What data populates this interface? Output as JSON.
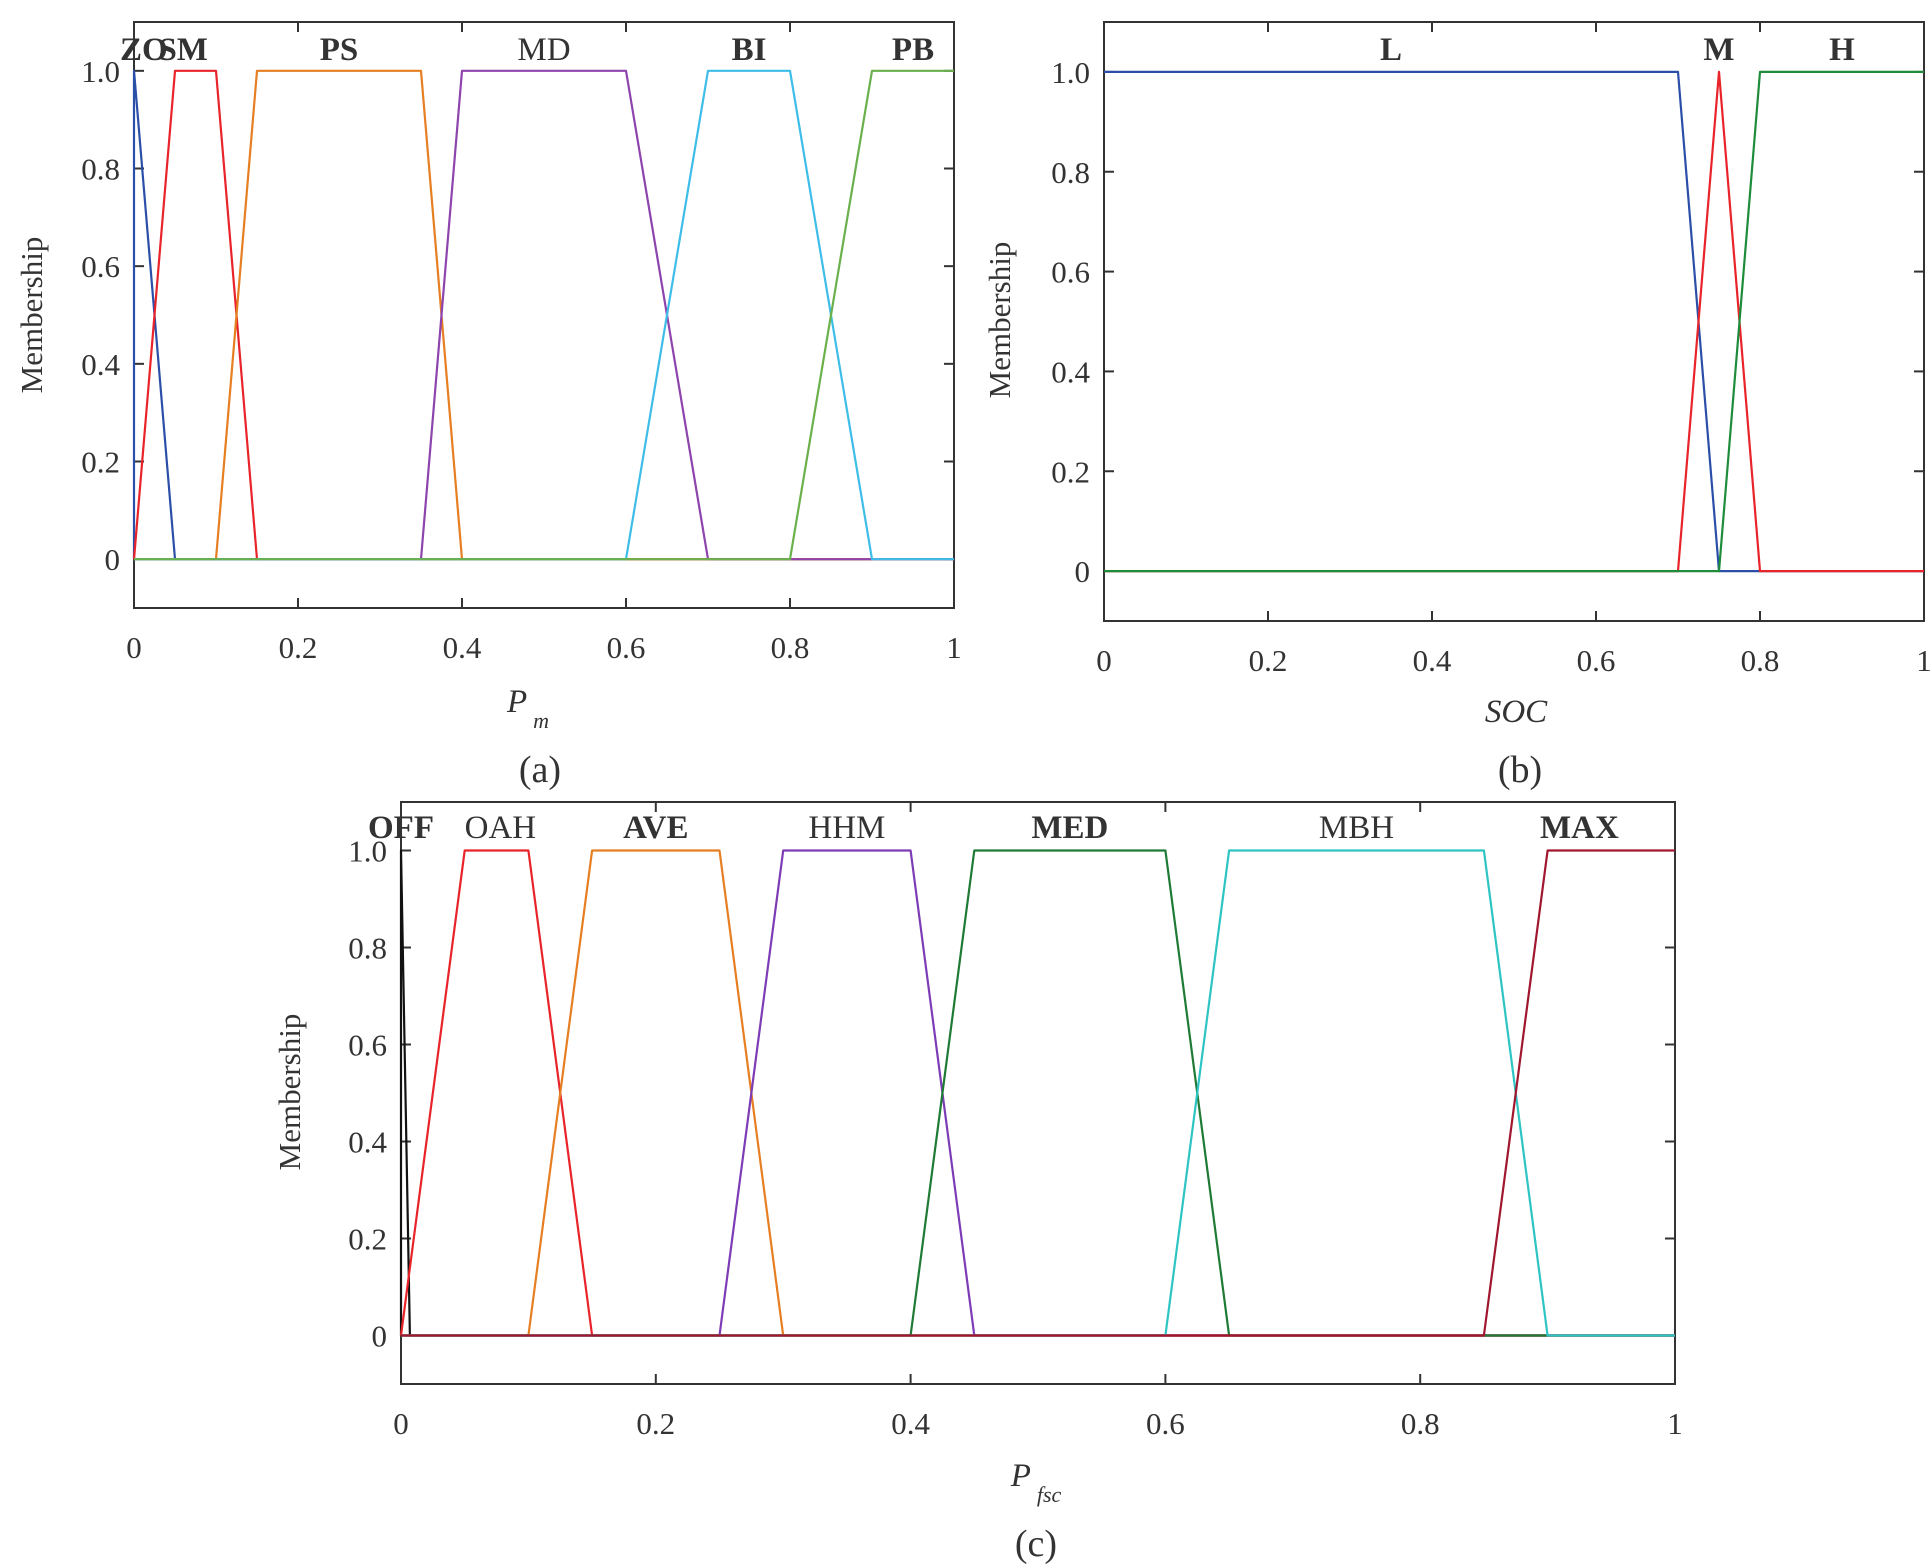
{
  "chart_data": [
    {
      "type": "line",
      "caption": "(a)",
      "xlabel": "P",
      "xlabel_sub": "m",
      "ylabel": "Membership",
      "xlim": [
        0,
        1
      ],
      "ylim": [
        -0.1,
        1.1
      ],
      "xticks": [
        "0",
        "0.2",
        "0.4",
        "0.6",
        "0.8",
        "1"
      ],
      "yticks": [
        "0",
        "0.2",
        "0.4",
        "0.6",
        "0.8",
        "1.0"
      ],
      "series": [
        {
          "name": "ZO",
          "bold": true,
          "color": "#2b4fa8",
          "x": [
            0,
            0,
            0.05,
            1
          ],
          "y": [
            0,
            1,
            0,
            0
          ]
        },
        {
          "name": "SM",
          "bold": true,
          "color": "#e8242a",
          "x": [
            0,
            0.05,
            0.1,
            0.15,
            1
          ],
          "y": [
            0,
            1,
            1,
            0,
            0
          ]
        },
        {
          "name": "PS",
          "bold": true,
          "color": "#e67e22",
          "x": [
            0,
            0.1,
            0.15,
            0.35,
            0.4,
            1
          ],
          "y": [
            0,
            0,
            1,
            1,
            0,
            0
          ]
        },
        {
          "name": "MD",
          "bold": false,
          "color": "#8e44ad",
          "x": [
            0,
            0.35,
            0.4,
            0.6,
            0.7,
            1
          ],
          "y": [
            0,
            0,
            1,
            1,
            0,
            0
          ]
        },
        {
          "name": "BI",
          "bold": true,
          "color": "#3ebde8",
          "x": [
            0,
            0.6,
            0.7,
            0.8,
            0.9,
            1
          ],
          "y": [
            0,
            0,
            1,
            1,
            0,
            0
          ]
        },
        {
          "name": "PB",
          "bold": true,
          "color": "#6ab04c",
          "x": [
            0,
            0.8,
            0.9,
            1
          ],
          "y": [
            0,
            0,
            1,
            1
          ]
        }
      ]
    },
    {
      "type": "line",
      "caption": "(b)",
      "xlabel": "SOC",
      "xlabel_sub": "",
      "ylabel": "Membership",
      "xlim": [
        0,
        1
      ],
      "ylim": [
        -0.1,
        1.1
      ],
      "xticks": [
        "0",
        "0.2",
        "0.4",
        "0.6",
        "0.8",
        "1"
      ],
      "yticks": [
        "0",
        "0.2",
        "0.4",
        "0.6",
        "0.8",
        "1.0"
      ],
      "series": [
        {
          "name": "L",
          "bold": true,
          "color": "#2b4fa8",
          "x": [
            0,
            0.7,
            0.75,
            1
          ],
          "y": [
            1,
            1,
            0,
            0
          ]
        },
        {
          "name": "M",
          "bold": true,
          "color": "#e8242a",
          "x": [
            0,
            0.7,
            0.75,
            0.8,
            1
          ],
          "y": [
            0,
            0,
            1,
            0,
            0
          ]
        },
        {
          "name": "H",
          "bold": true,
          "color": "#1e8c3a",
          "x": [
            0,
            0.75,
            0.8,
            1
          ],
          "y": [
            0,
            0,
            1,
            1
          ]
        }
      ]
    },
    {
      "type": "line",
      "caption": "(c)",
      "xlabel": "P",
      "xlabel_sub": "fsc",
      "ylabel": "Membership",
      "xlim": [
        0,
        1
      ],
      "ylim": [
        -0.1,
        1.1
      ],
      "xticks": [
        "0",
        "0.2",
        "0.4",
        "0.6",
        "0.8",
        "1"
      ],
      "yticks": [
        "0",
        "0.2",
        "0.4",
        "0.6",
        "0.8",
        "1.0"
      ],
      "series": [
        {
          "name": "OFF",
          "bold": true,
          "color": "#111111",
          "x": [
            0,
            0,
            0.007,
            1
          ],
          "y": [
            0,
            1,
            0,
            0
          ]
        },
        {
          "name": "OAH",
          "bold": false,
          "color": "#e8242a",
          "x": [
            0,
            0.05,
            0.1,
            0.15,
            1
          ],
          "y": [
            0,
            1,
            1,
            0,
            0
          ]
        },
        {
          "name": "AVE",
          "bold": true,
          "color": "#e67e22",
          "x": [
            0,
            0.1,
            0.15,
            0.25,
            0.3,
            1
          ],
          "y": [
            0,
            0,
            1,
            1,
            0,
            0
          ]
        },
        {
          "name": "HHM",
          "bold": false,
          "color": "#7d3cb5",
          "x": [
            0,
            0.25,
            0.3,
            0.4,
            0.45,
            1
          ],
          "y": [
            0,
            0,
            1,
            1,
            0,
            0
          ]
        },
        {
          "name": "MED",
          "bold": true,
          "color": "#1e7a35",
          "x": [
            0,
            0.4,
            0.45,
            0.6,
            0.65,
            1
          ],
          "y": [
            0,
            0,
            1,
            1,
            0,
            0
          ]
        },
        {
          "name": "MBH",
          "bold": false,
          "color": "#2ec4c4",
          "x": [
            0,
            0.6,
            0.65,
            0.85,
            0.9,
            1
          ],
          "y": [
            0,
            0,
            1,
            1,
            0,
            0
          ]
        },
        {
          "name": "MAX",
          "bold": true,
          "color": "#a0172f",
          "x": [
            0,
            0.85,
            0.9,
            1
          ],
          "y": [
            0,
            0,
            1,
            1
          ]
        }
      ]
    }
  ]
}
